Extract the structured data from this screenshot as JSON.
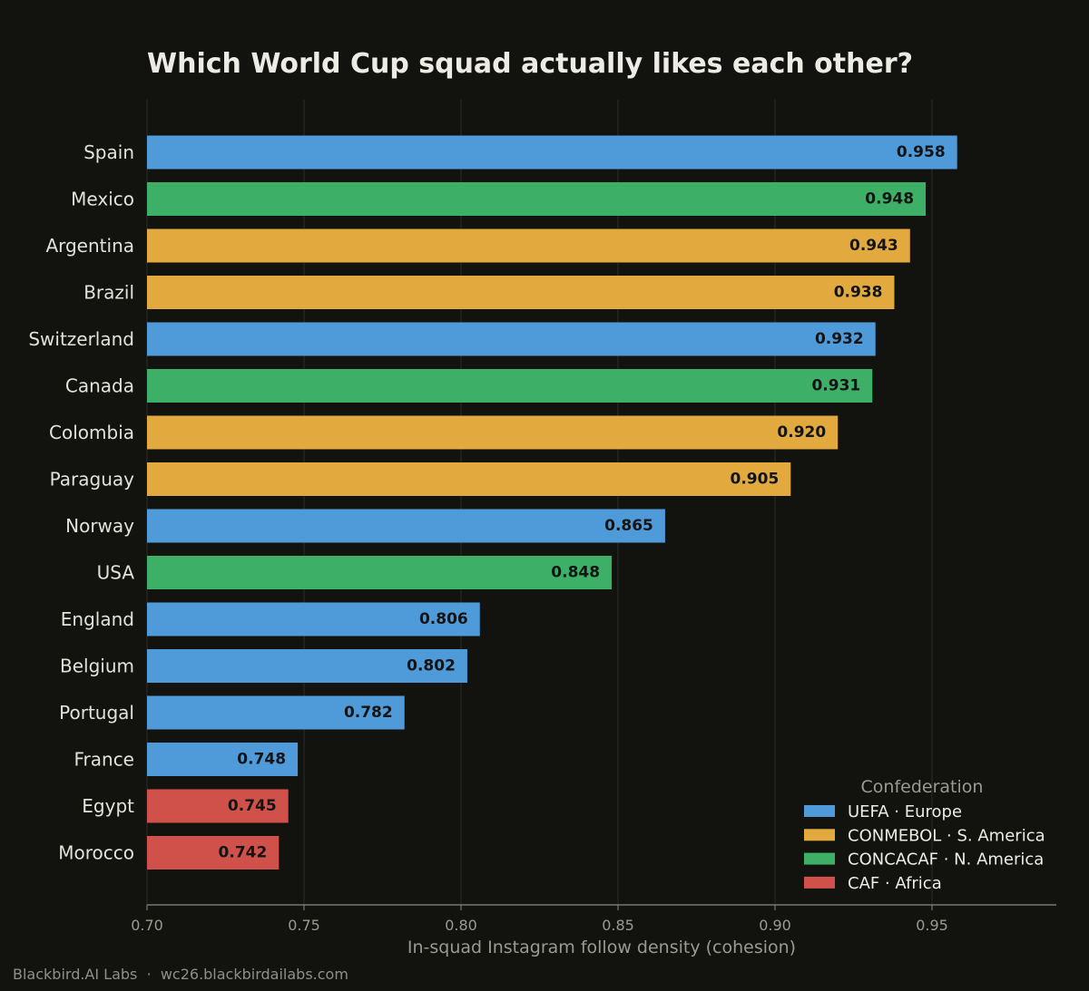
{
  "footer": "Blackbird.AI Labs  ·  wc26.blackbirdailabs.com",
  "chart_data": {
    "type": "bar",
    "orientation": "horizontal",
    "title": "Which World Cup squad actually likes each other?",
    "xlabel": "In-squad Instagram follow density (cohesion)",
    "ylabel": "",
    "xlim": [
      0.7,
      0.99
    ],
    "xticks": [
      "0.70",
      "0.75",
      "0.80",
      "0.85",
      "0.90",
      "0.95"
    ],
    "grid": "vertical",
    "legend": {
      "title": "Confederation",
      "placement": "bottom-right",
      "entries": [
        {
          "key": "UEFA",
          "label": "UEFA · Europe",
          "color": "#4f9bd9"
        },
        {
          "key": "CONMEBOL",
          "label": "CONMEBOL · S. America",
          "color": "#e2a93f"
        },
        {
          "key": "CONCACAF",
          "label": "CONCACAF · N. America",
          "color": "#3daf66"
        },
        {
          "key": "CAF",
          "label": "CAF · Africa",
          "color": "#d0514a"
        }
      ]
    },
    "bars": [
      {
        "team": "Spain",
        "value": 0.958,
        "label": "0.958",
        "confederation": "UEFA"
      },
      {
        "team": "Mexico",
        "value": 0.948,
        "label": "0.948",
        "confederation": "CONCACAF"
      },
      {
        "team": "Argentina",
        "value": 0.943,
        "label": "0.943",
        "confederation": "CONMEBOL"
      },
      {
        "team": "Brazil",
        "value": 0.938,
        "label": "0.938",
        "confederation": "CONMEBOL"
      },
      {
        "team": "Switzerland",
        "value": 0.932,
        "label": "0.932",
        "confederation": "UEFA"
      },
      {
        "team": "Canada",
        "value": 0.931,
        "label": "0.931",
        "confederation": "CONCACAF"
      },
      {
        "team": "Colombia",
        "value": 0.92,
        "label": "0.920",
        "confederation": "CONMEBOL"
      },
      {
        "team": "Paraguay",
        "value": 0.905,
        "label": "0.905",
        "confederation": "CONMEBOL"
      },
      {
        "team": "Norway",
        "value": 0.865,
        "label": "0.865",
        "confederation": "UEFA"
      },
      {
        "team": "USA",
        "value": 0.848,
        "label": "0.848",
        "confederation": "CONCACAF"
      },
      {
        "team": "England",
        "value": 0.806,
        "label": "0.806",
        "confederation": "UEFA"
      },
      {
        "team": "Belgium",
        "value": 0.802,
        "label": "0.802",
        "confederation": "UEFA"
      },
      {
        "team": "Portugal",
        "value": 0.782,
        "label": "0.782",
        "confederation": "UEFA"
      },
      {
        "team": "France",
        "value": 0.748,
        "label": "0.748",
        "confederation": "UEFA"
      },
      {
        "team": "Egypt",
        "value": 0.745,
        "label": "0.745",
        "confederation": "CAF"
      },
      {
        "team": "Morocco",
        "value": 0.742,
        "label": "0.742",
        "confederation": "CAF"
      }
    ]
  }
}
